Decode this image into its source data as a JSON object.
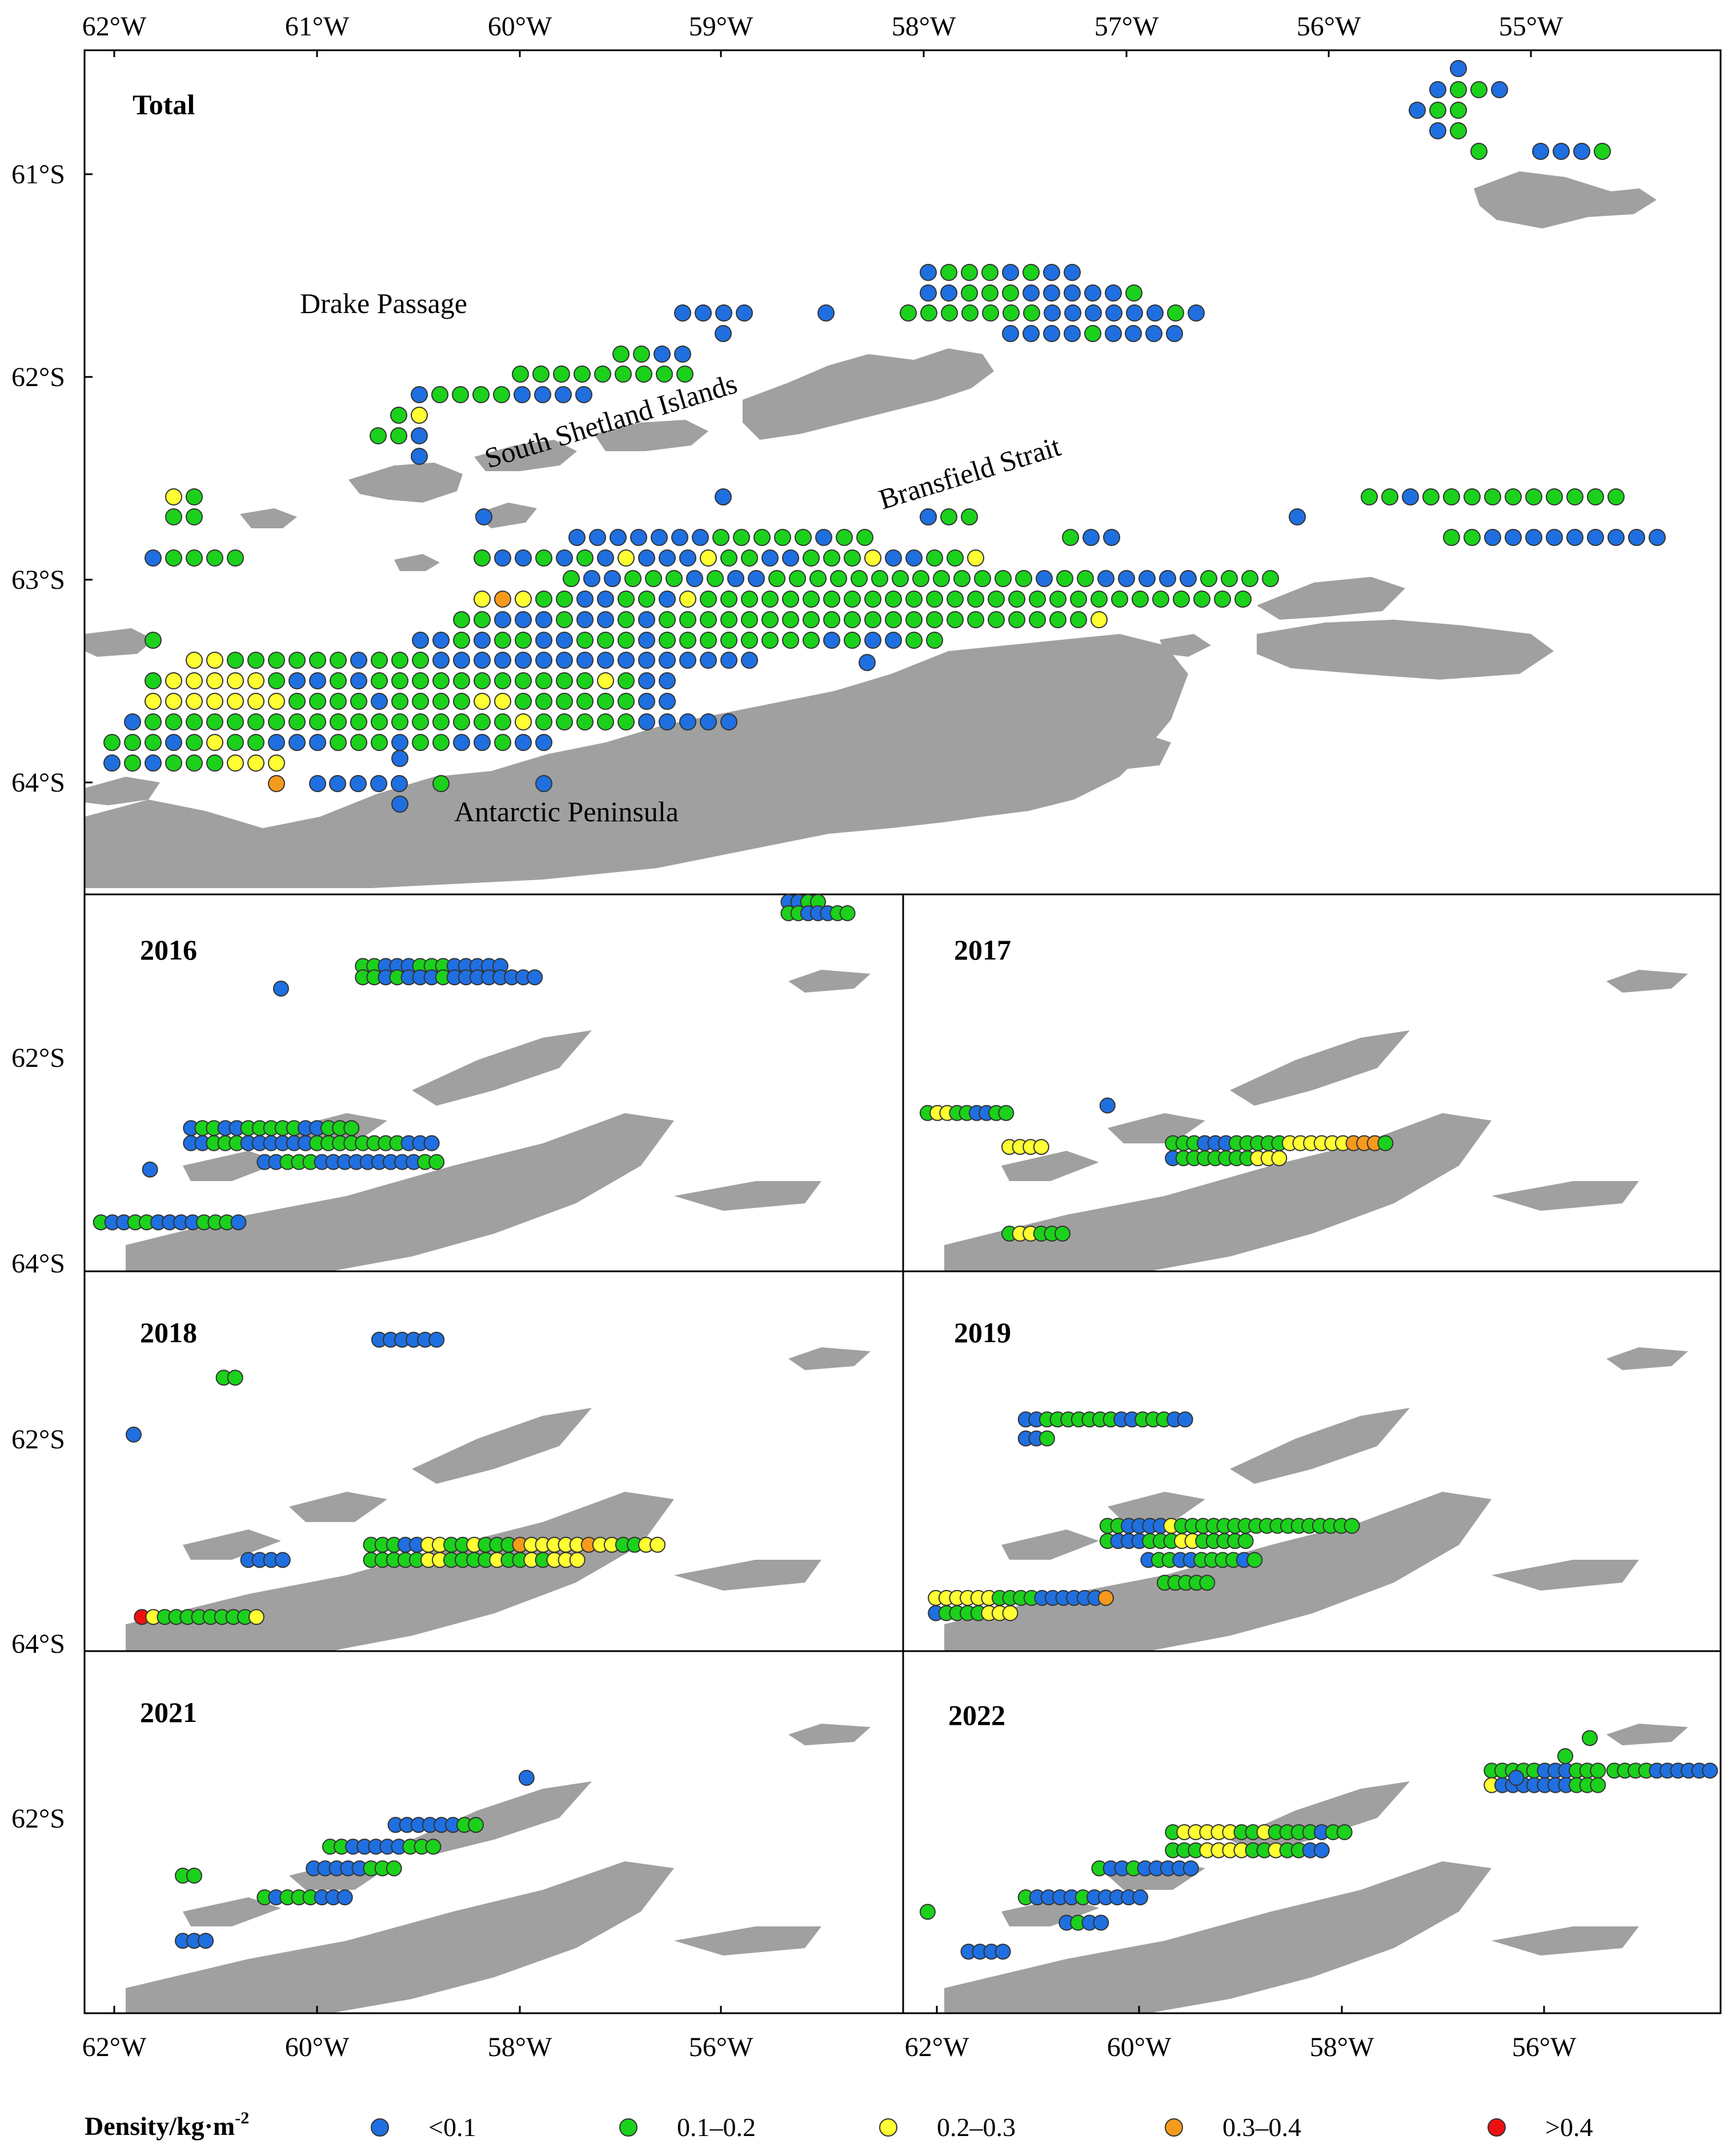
{
  "legend": {
    "title": "Density/kg·m",
    "title_sup": "-2",
    "classes": [
      {
        "label": "<0.1",
        "color": "#1f6fe0"
      },
      {
        "label": "0.1–0.2",
        "color": "#1bd11b"
      },
      {
        "label": "0.2–0.3",
        "color": "#ffff33"
      },
      {
        "label": "0.3–0.4",
        "color": "#f59a1c"
      },
      {
        "label": ">0.4",
        "color": "#ee1111"
      }
    ]
  },
  "colors": {
    "land": "#a0a0a0",
    "frame": "#000000"
  },
  "total_map": {
    "label": "Total",
    "lon_ticks": [
      "62°W",
      "61°W",
      "60°W",
      "59°W",
      "58°W",
      "57°W",
      "56°W",
      "55°W"
    ],
    "lat_ticks": [
      "61°S",
      "62°S",
      "63°S",
      "64°S"
    ],
    "places": {
      "drake": "Drake Passage",
      "ssi": "South Shetland Islands",
      "bransfield": "Bransfield Strait",
      "peninsula": "Antarctic Peninsula"
    }
  },
  "panels": [
    {
      "label": "2016"
    },
    {
      "label": "2017"
    },
    {
      "label": "2018"
    },
    {
      "label": "2019"
    },
    {
      "label": "2021"
    },
    {
      "label": "2022"
    }
  ],
  "panel_lat_tick_62": "62°S",
  "panel_lat_tick_64": "64°S",
  "bottom_lon_ticks_left": [
    "62°W",
    "60°W",
    "58°W",
    "56°W"
  ],
  "bottom_lon_ticks_right": [
    "62°W",
    "60°W",
    "58°W",
    "56°W"
  ]
}
